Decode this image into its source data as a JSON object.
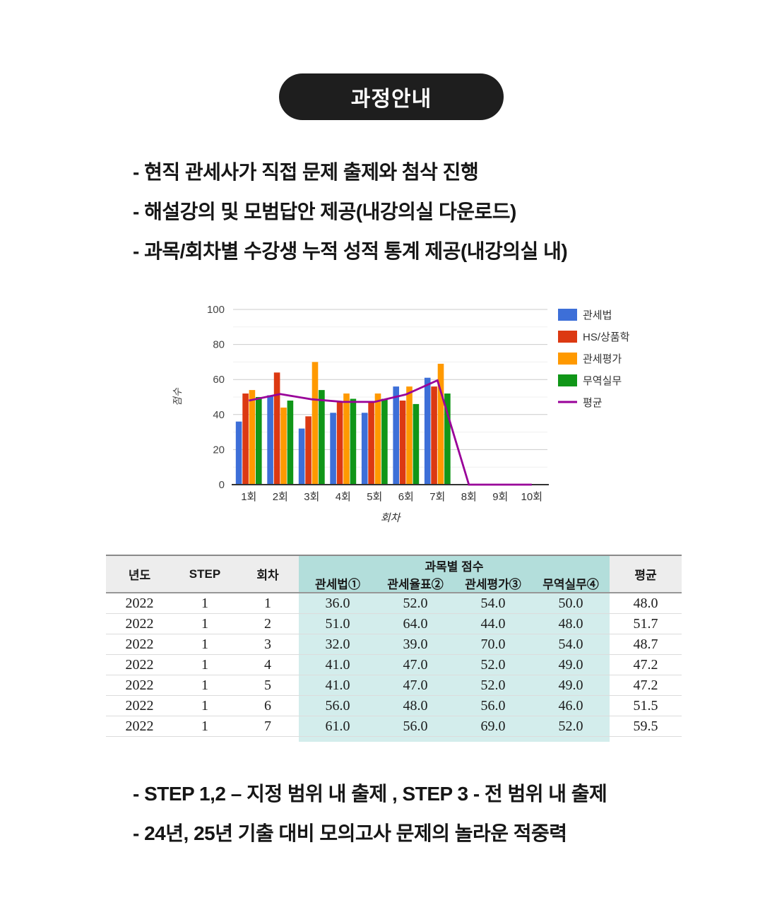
{
  "header_pill": {
    "label": "과정안내",
    "bg": "#1e1e1e",
    "text_color": "#ffffff"
  },
  "intro_bullets": [
    "- 현직 관세사가 직접 문제 출제와 첨삭 진행",
    "- 해설강의 및 모범답안 제공(내강의실 다운로드)",
    "- 과목/회차별 수강생 누적 성적 통계 제공(내강의실 내)"
  ],
  "chart_data": {
    "type": "bar",
    "categories": [
      "1회",
      "2회",
      "3회",
      "4회",
      "5회",
      "6회",
      "7회",
      "8회",
      "9회",
      "10회"
    ],
    "series": [
      {
        "name": "관세법",
        "type": "bar",
        "color": "#3d6fd8",
        "values": [
          36,
          51,
          32,
          41,
          41,
          56,
          61,
          null,
          null,
          null
        ]
      },
      {
        "name": "HS/상품학",
        "type": "bar",
        "color": "#dc3912",
        "values": [
          52,
          64,
          39,
          47,
          47,
          48,
          56,
          null,
          null,
          null
        ]
      },
      {
        "name": "관세평가",
        "type": "bar",
        "color": "#ff9900",
        "values": [
          54,
          44,
          70,
          52,
          52,
          56,
          69,
          null,
          null,
          null
        ]
      },
      {
        "name": "무역실무",
        "type": "bar",
        "color": "#109618",
        "values": [
          50,
          48,
          54,
          49,
          49,
          46,
          52,
          null,
          null,
          null
        ]
      },
      {
        "name": "평균",
        "type": "line",
        "color": "#990099",
        "values": [
          48.0,
          51.7,
          48.7,
          47.2,
          47.2,
          51.5,
          59.5,
          0,
          0,
          0
        ]
      }
    ],
    "xlabel": "회차",
    "ylabel": "점수",
    "ylim": [
      0,
      100
    ],
    "yticks": [
      0,
      20,
      40,
      60,
      80,
      100
    ],
    "minor_gridlines": [
      10,
      30,
      50,
      70,
      90
    ],
    "grid": true,
    "legend_position": "right",
    "gridline_color": "#cccccc",
    "minor_gridline_color": "#f0f0f0",
    "axis_color": "#333333",
    "tick_label_color": "#444444"
  },
  "table": {
    "group_header": "과목별 점수",
    "plain_columns_left": [
      "년도",
      "STEP",
      "회차"
    ],
    "subject_columns": [
      "관세법①",
      "관세율표②",
      "관세평가③",
      "무역실무④"
    ],
    "plain_columns_right": [
      "평균"
    ],
    "rows": [
      [
        "2022",
        "1",
        "1",
        "36.0",
        "52.0",
        "54.0",
        "50.0",
        "48.0"
      ],
      [
        "2022",
        "1",
        "2",
        "51.0",
        "64.0",
        "44.0",
        "48.0",
        "51.7"
      ],
      [
        "2022",
        "1",
        "3",
        "32.0",
        "39.0",
        "70.0",
        "54.0",
        "48.7"
      ],
      [
        "2022",
        "1",
        "4",
        "41.0",
        "47.0",
        "52.0",
        "49.0",
        "47.2"
      ],
      [
        "2022",
        "1",
        "5",
        "41.0",
        "47.0",
        "52.0",
        "49.0",
        "47.2"
      ],
      [
        "2022",
        "1",
        "6",
        "56.0",
        "48.0",
        "56.0",
        "46.0",
        "51.5"
      ],
      [
        "2022",
        "1",
        "7",
        "61.0",
        "56.0",
        "69.0",
        "52.0",
        "59.5"
      ]
    ],
    "header_bg": "#ededed",
    "group_header_bg": "#b3dedb",
    "cell_highlight_bg": "#d3edec"
  },
  "footer_bullets": [
    "- STEP 1,2 – 지정 범위 내 출제 , STEP 3 -  전 범위 내 출제",
    "- 24년, 25년 기출 대비 모의고사 문제의 놀라운 적중력"
  ]
}
